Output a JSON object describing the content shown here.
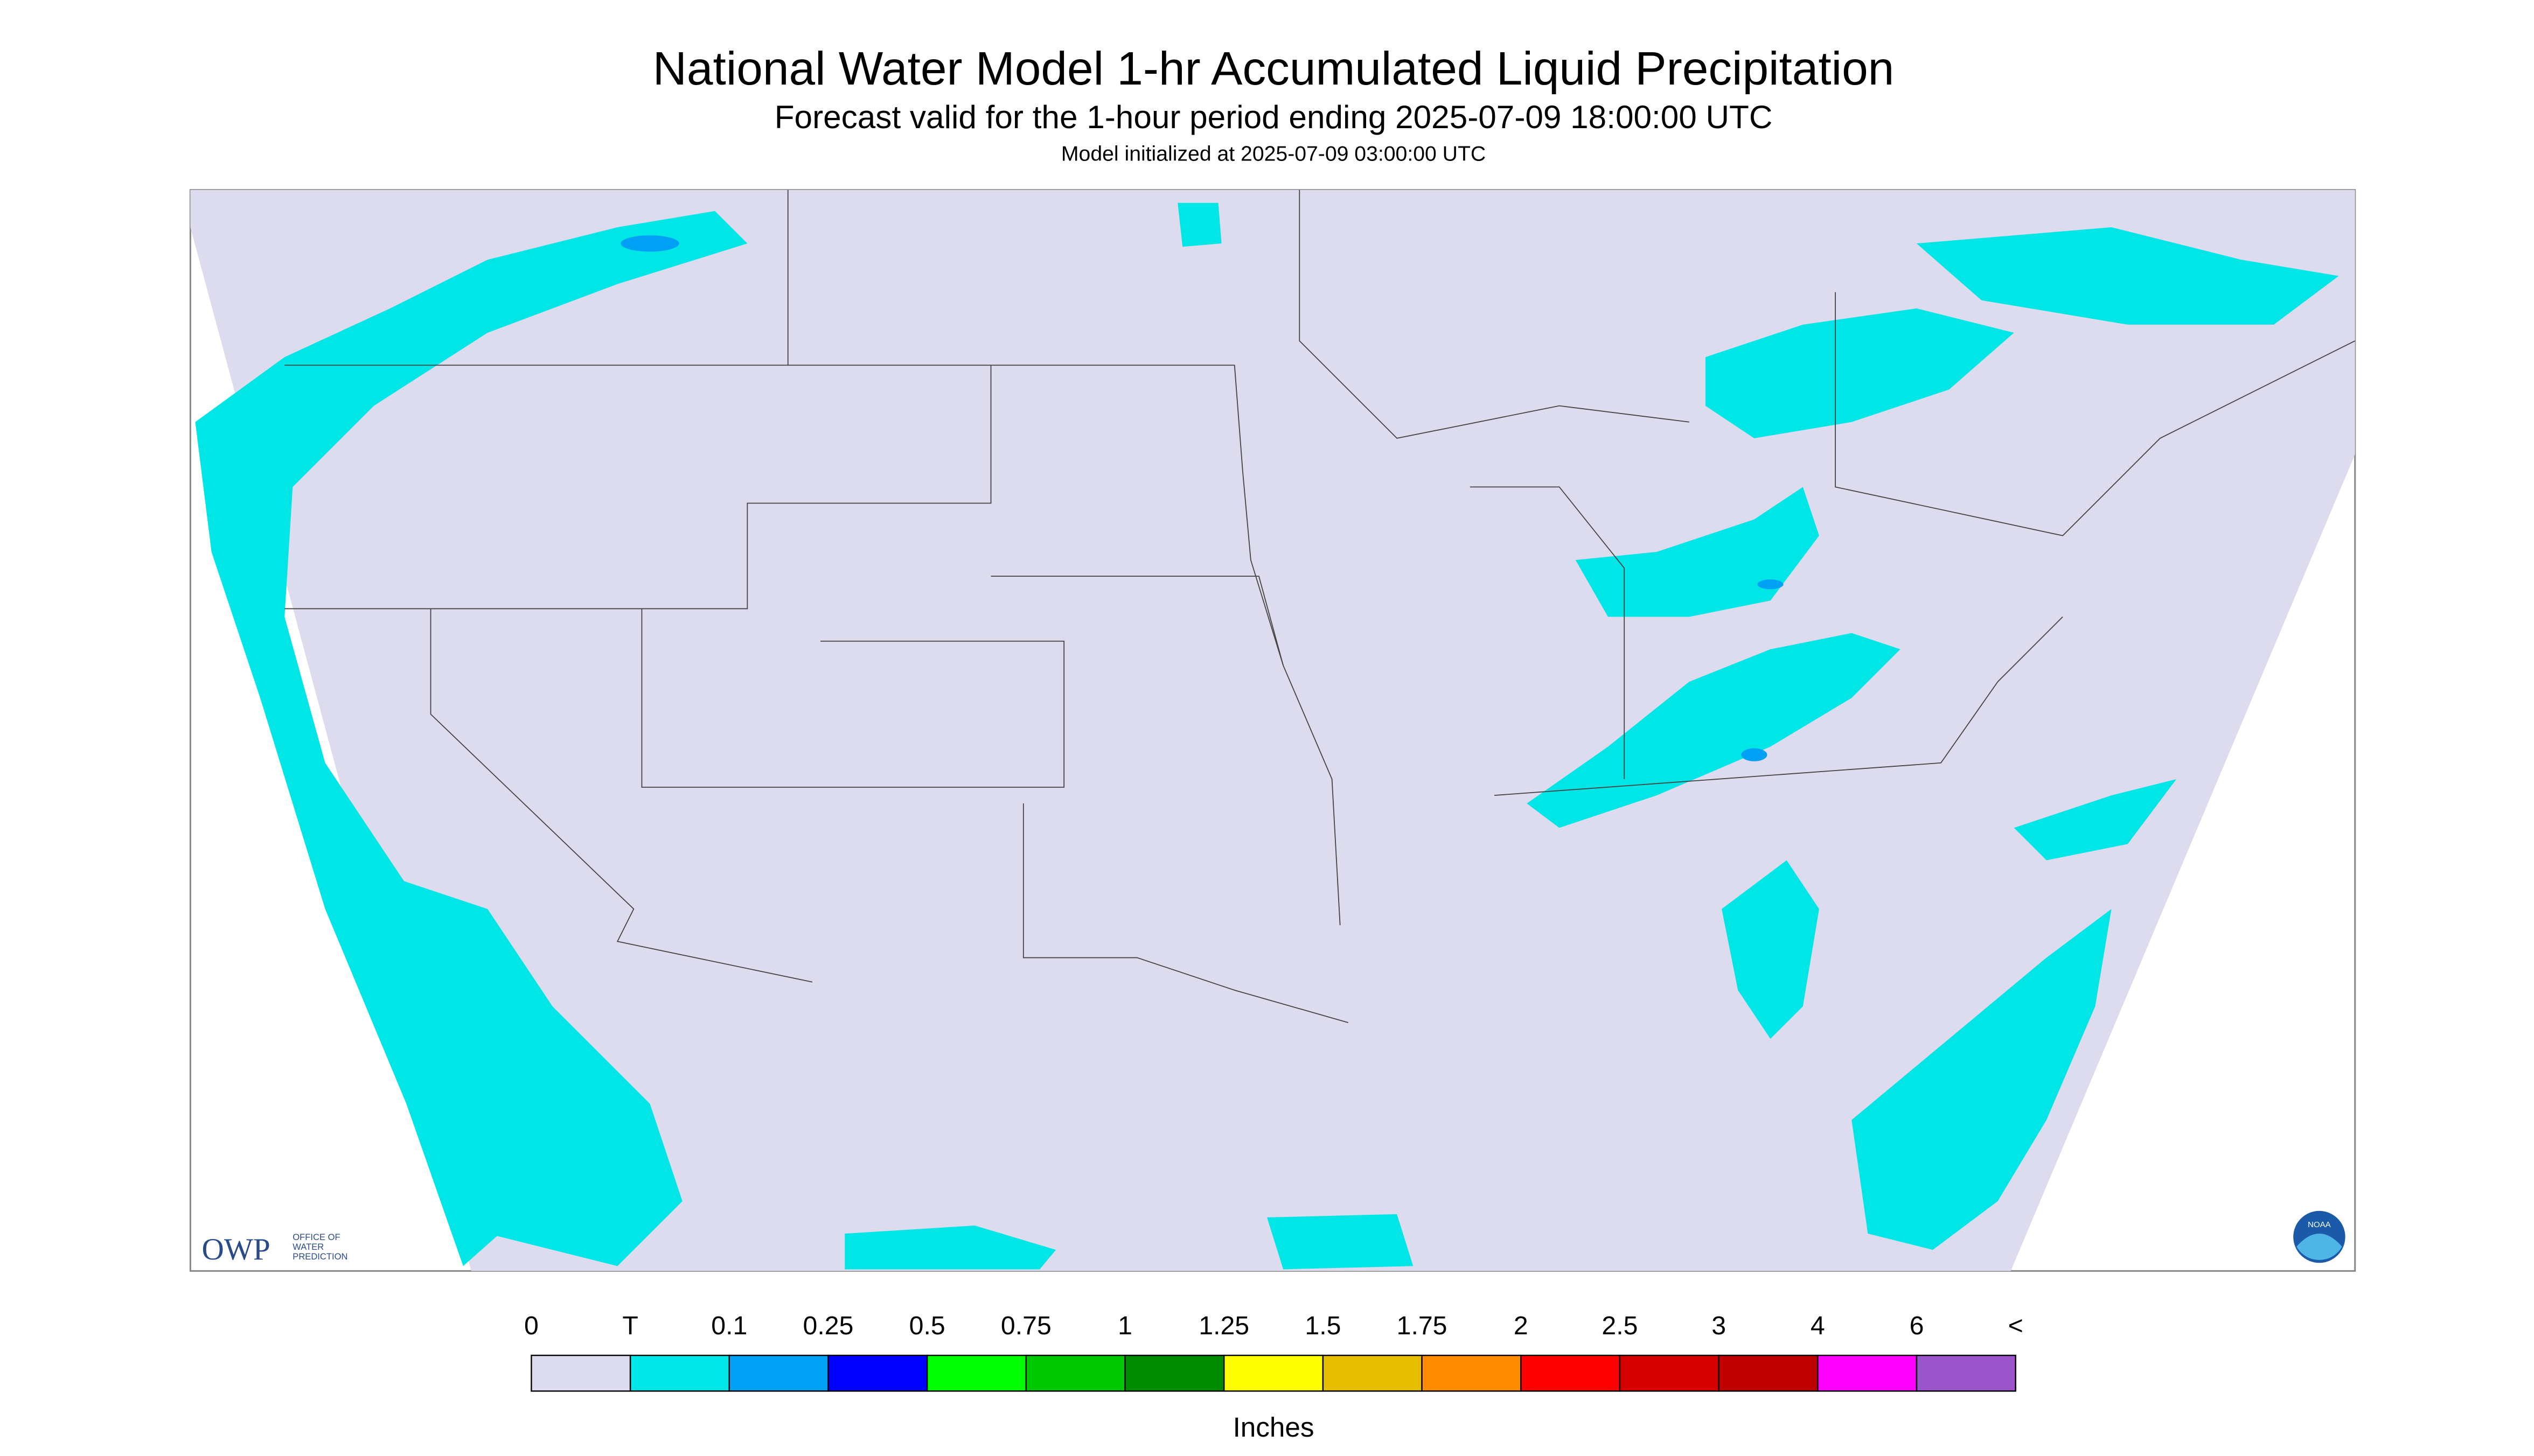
{
  "header": {
    "title": "National Water Model 1-hr Accumulated Liquid Precipitation",
    "subtitle": "Forecast valid for the 1-hour period ending 2025-07-09 18:00:00 UTC",
    "init": "Model initialized at 2025-07-09 03:00:00 UTC"
  },
  "logo": {
    "owp": "OWP",
    "office": [
      "OFFICE OF",
      "WATER",
      "PREDICTION"
    ],
    "noaa": "NOAA"
  },
  "legend": {
    "labels": [
      "0",
      "T",
      "0.1",
      "0.25",
      "0.5",
      "0.75",
      "1",
      "1.25",
      "1.5",
      "1.75",
      "2",
      "2.5",
      "3",
      "4",
      "6",
      "<"
    ],
    "colors": [
      "#dcdcee",
      "#00e6e6",
      "#00a0f5",
      "#0000ff",
      "#00ff00",
      "#00c800",
      "#008c00",
      "#ffff00",
      "#e6be00",
      "#ff8c00",
      "#ff0000",
      "#d70000",
      "#bf0000",
      "#ff00ff",
      "#9955c9"
    ],
    "units": "Inches"
  }
}
